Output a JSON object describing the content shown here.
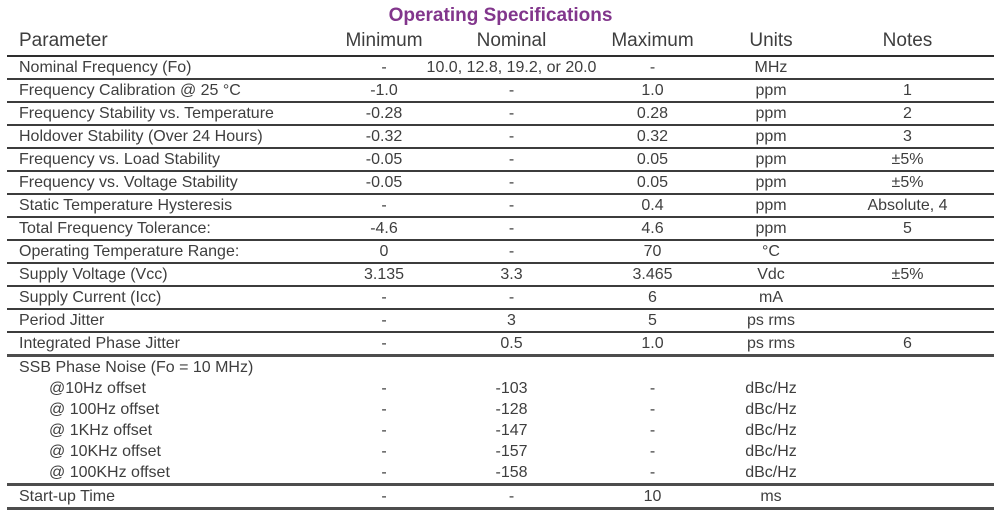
{
  "title": "Operating Specifications",
  "title_color": "#82368C",
  "text_color": "#3e3e3e",
  "table": {
    "columns": [
      "Parameter",
      "Minimum",
      "Nominal",
      "Maximum",
      "Units",
      "Notes"
    ],
    "rows": [
      {
        "parameter": "Nominal Frequency (Fo)",
        "minimum": "-",
        "nominal": "10.0, 12.8, 19.2, or 20.0",
        "maximum": "-",
        "units": "MHz",
        "notes": "",
        "border": "normal",
        "wide": true
      },
      {
        "parameter": "Frequency Calibration @ 25 °C",
        "minimum": "-1.0",
        "nominal": "-",
        "maximum": "1.0",
        "units": "ppm",
        "notes": "1",
        "border": "normal"
      },
      {
        "parameter": "Frequency Stability vs. Temperature",
        "minimum": "-0.28",
        "nominal": "-",
        "maximum": "0.28",
        "units": "ppm",
        "notes": "2",
        "border": "normal"
      },
      {
        "parameter": "Holdover Stability (Over 24 Hours)",
        "minimum": "-0.32",
        "nominal": "-",
        "maximum": "0.32",
        "units": "ppm",
        "notes": "3",
        "border": "normal"
      },
      {
        "parameter": "Frequency vs. Load Stability",
        "minimum": "-0.05",
        "nominal": "-",
        "maximum": "0.05",
        "units": "ppm",
        "notes": "±5%",
        "border": "normal"
      },
      {
        "parameter": "Frequency vs. Voltage Stability",
        "minimum": "-0.05",
        "nominal": "-",
        "maximum": "0.05",
        "units": "ppm",
        "notes": "±5%",
        "border": "normal"
      },
      {
        "parameter": "Static Temperature Hysteresis",
        "minimum": "-",
        "nominal": "-",
        "maximum": "0.4",
        "units": "ppm",
        "notes": "Absolute, 4",
        "border": "normal"
      },
      {
        "parameter": "Total Frequency Tolerance:",
        "minimum": "-4.6",
        "nominal": "-",
        "maximum": "4.6",
        "units": "ppm",
        "notes": "5",
        "border": "normal"
      },
      {
        "parameter": "Operating Temperature Range:",
        "minimum": "0",
        "nominal": "-",
        "maximum": "70",
        "units": "°C",
        "notes": "",
        "border": "normal"
      },
      {
        "parameter": "Supply Voltage (Vcc)",
        "minimum": "3.135",
        "nominal": "3.3",
        "maximum": "3.465",
        "units": "Vdc",
        "notes": "±5%",
        "border": "normal"
      },
      {
        "parameter": "Supply Current (Icc)",
        "minimum": "-",
        "nominal": "-",
        "maximum": "6",
        "units": "mA",
        "notes": "",
        "border": "normal"
      },
      {
        "parameter": "Period Jitter",
        "minimum": "-",
        "nominal": "3",
        "maximum": "5",
        "units": "ps rms",
        "notes": "",
        "border": "normal"
      },
      {
        "parameter": "Integrated Phase Jitter",
        "minimum": "-",
        "nominal": "0.5",
        "maximum": "1.0",
        "units": "ps rms",
        "notes": "6",
        "border": "thick"
      },
      {
        "parameter": "SSB Phase Noise (Fo = 10 MHz)",
        "minimum": "",
        "nominal": "",
        "maximum": "",
        "units": "",
        "notes": "",
        "border": "none"
      },
      {
        "parameter": "@10Hz offset",
        "indent": true,
        "minimum": "-",
        "nominal": "-103",
        "maximum": "-",
        "units": "dBc/Hz",
        "notes": "",
        "border": "none"
      },
      {
        "parameter": "@ 100Hz offset",
        "indent": true,
        "minimum": "-",
        "nominal": "-128",
        "maximum": "-",
        "units": "dBc/Hz",
        "notes": "",
        "border": "none"
      },
      {
        "parameter": "@ 1KHz offset",
        "indent": true,
        "minimum": "-",
        "nominal": "-147",
        "maximum": "-",
        "units": "dBc/Hz",
        "notes": "",
        "border": "none"
      },
      {
        "parameter": "@ 10KHz offset",
        "indent": true,
        "minimum": "-",
        "nominal": "-157",
        "maximum": "-",
        "units": "dBc/Hz",
        "notes": "",
        "border": "none"
      },
      {
        "parameter": "@ 100KHz offset",
        "indent": true,
        "minimum": "-",
        "nominal": "-158",
        "maximum": "-",
        "units": "dBc/Hz",
        "notes": "",
        "border": "thick"
      },
      {
        "parameter": "Start-up Time",
        "minimum": "-",
        "nominal": "-",
        "maximum": "10",
        "units": "ms",
        "notes": "",
        "border": "thick"
      }
    ]
  }
}
